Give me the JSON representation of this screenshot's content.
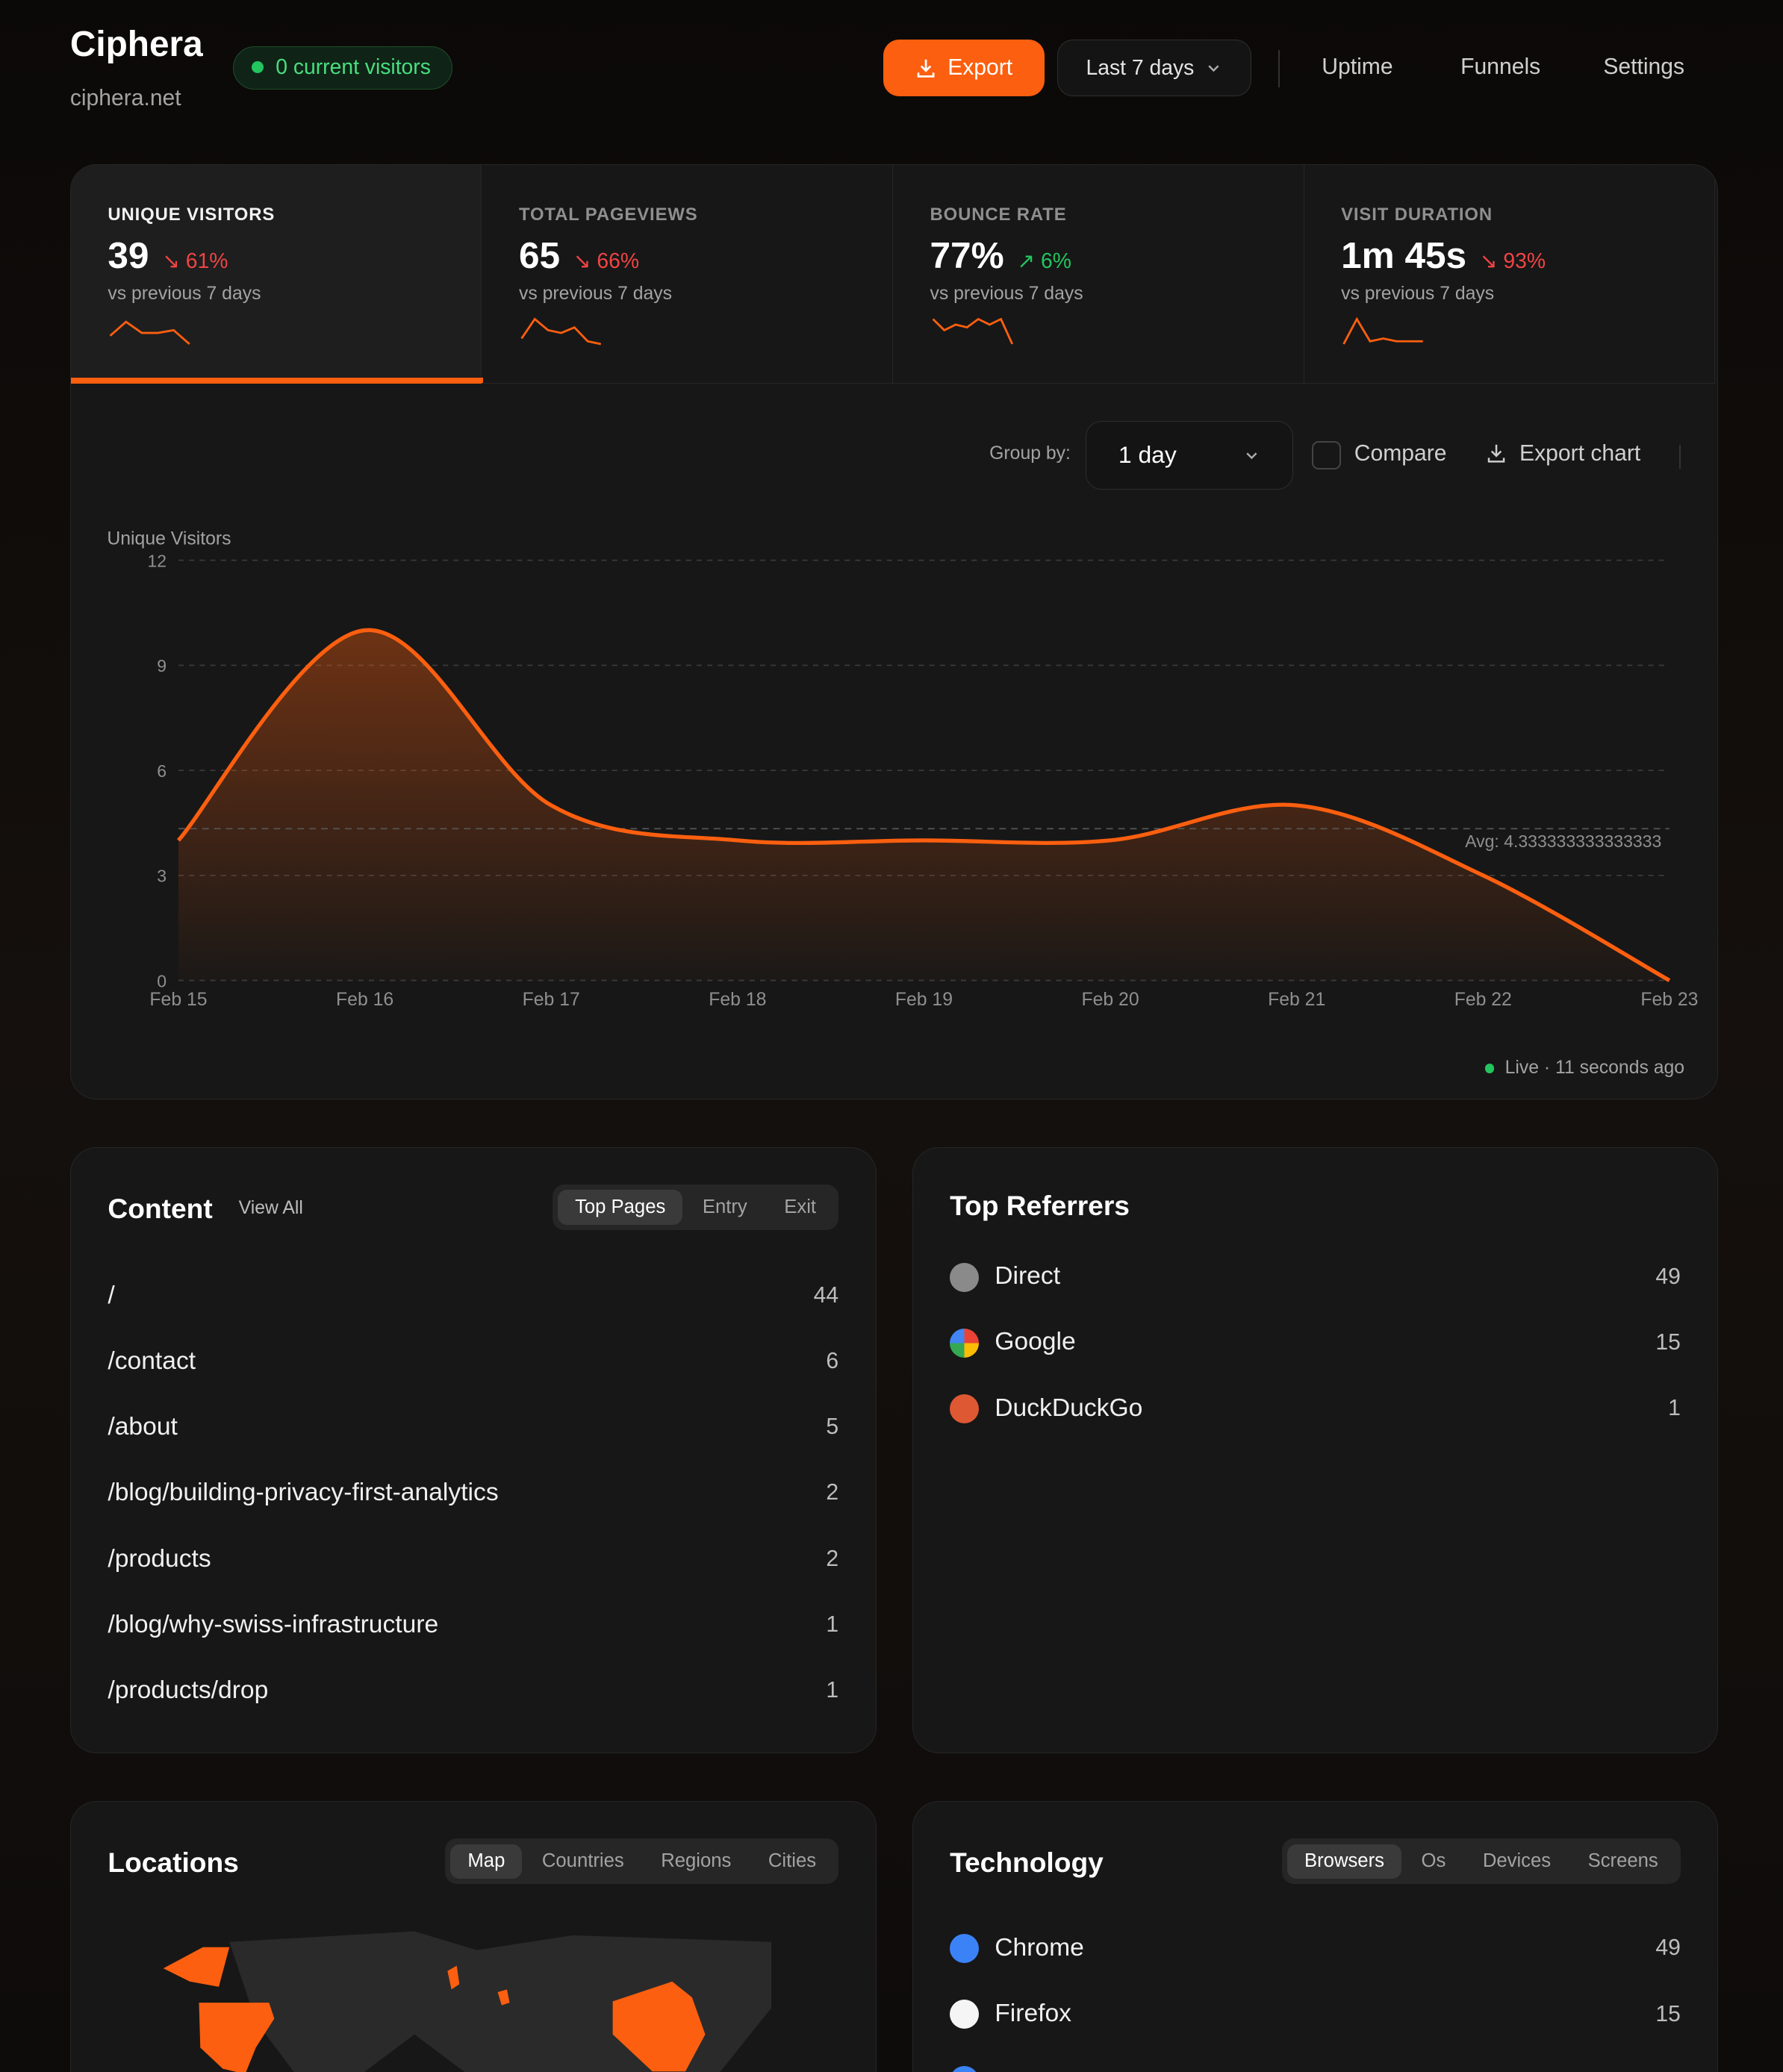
{
  "header": {
    "title": "Ciphera",
    "domain": "ciphera.net",
    "visitors_badge": "0 current visitors",
    "export_label": "Export",
    "range_label": "Last 7 days",
    "nav": [
      "Uptime",
      "Funnels",
      "Settings"
    ]
  },
  "stats": [
    {
      "label": "UNIQUE VISITORS",
      "value": "39",
      "change": "↘ 61%",
      "trend": "down",
      "vs": "vs previous 7 days",
      "spark": [
        3,
        8,
        4,
        4,
        5,
        0
      ],
      "active": true
    },
    {
      "label": "TOTAL PAGEVIEWS",
      "value": "65",
      "change": "↘ 66%",
      "trend": "down",
      "vs": "vs previous 7 days",
      "spark": [
        2,
        9,
        5,
        4,
        6,
        1,
        0
      ],
      "active": false
    },
    {
      "label": "BOUNCE RATE",
      "value": "77%",
      "change": "↗ 6%",
      "trend": "up",
      "vs": "vs previous 7 days",
      "spark": [
        9,
        5,
        7,
        6,
        9,
        7,
        9,
        0
      ],
      "active": false
    },
    {
      "label": "VISIT DURATION",
      "value": "1m 45s",
      "change": "↘ 93%",
      "trend": "down",
      "vs": "vs previous 7 days",
      "spark": [
        0,
        9,
        1,
        2,
        1,
        1,
        1
      ],
      "active": false
    }
  ],
  "chart_controls": {
    "group_by_label": "Group by:",
    "group_by_value": "1 day",
    "compare_label": "Compare",
    "export_chart_label": "Export chart"
  },
  "chart_data": {
    "type": "area",
    "ylabel": "Unique Visitors",
    "categories": [
      "Feb 15",
      "Feb 16",
      "Feb 17",
      "Feb 18",
      "Feb 19",
      "Feb 20",
      "Feb 21",
      "Feb 22",
      "Feb 23"
    ],
    "values": [
      4,
      10,
      5,
      4,
      4,
      4,
      5,
      3,
      0
    ],
    "ylim": [
      0,
      12
    ],
    "yticks": [
      0,
      3,
      6,
      9,
      12
    ],
    "avg": 4.333333333333333,
    "avg_label": "Avg: 4.333333333333333",
    "grid": true,
    "color": "#fb5f0f"
  },
  "live_status": "Live · 11 seconds ago",
  "content": {
    "title": "Content",
    "view_all": "View All",
    "tabs": [
      "Top Pages",
      "Entry",
      "Exit"
    ],
    "rows": [
      {
        "path": "/",
        "count": "44"
      },
      {
        "path": "/contact",
        "count": "6"
      },
      {
        "path": "/about",
        "count": "5"
      },
      {
        "path": "/blog/building-privacy-first-analytics",
        "count": "2"
      },
      {
        "path": "/products",
        "count": "2"
      },
      {
        "path": "/blog/why-swiss-infrastructure",
        "count": "1"
      },
      {
        "path": "/products/drop",
        "count": "1"
      }
    ]
  },
  "referrers": {
    "title": "Top Referrers",
    "rows": [
      {
        "name": "Direct",
        "count": "49",
        "icon": "globe-icon"
      },
      {
        "name": "Google",
        "count": "15",
        "icon": "google-icon"
      },
      {
        "name": "DuckDuckGo",
        "count": "1",
        "icon": "duckduckgo-icon"
      }
    ]
  },
  "locations": {
    "title": "Locations",
    "tabs": [
      "Map",
      "Countries",
      "Regions",
      "Cities"
    ]
  },
  "technology": {
    "title": "Technology",
    "tabs": [
      "Browsers",
      "Os",
      "Devices",
      "Screens"
    ],
    "rows": [
      {
        "name": "Chrome",
        "count": "49",
        "icon": "chrome-icon"
      },
      {
        "name": "Firefox",
        "count": "15",
        "icon": "firefox-icon"
      }
    ]
  },
  "colors": {
    "accent": "#fb5f0f",
    "up": "#22c55e",
    "down": "#ef4444"
  }
}
